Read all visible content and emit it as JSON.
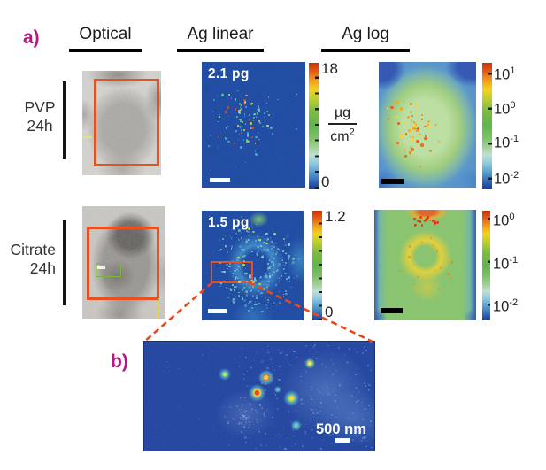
{
  "panel_a": "a)",
  "panel_b": "b)",
  "headers": {
    "optical": "Optical",
    "ag_linear": "Ag linear",
    "ag_log": "Ag log"
  },
  "row_pvp": {
    "line1": "PVP",
    "line2": "24h"
  },
  "row_citrate": {
    "line1": "Citrate",
    "line2": "24h"
  },
  "pvp": {
    "mass": "2.1 pg",
    "linear_colorbar": {
      "max": "18",
      "min": "0"
    },
    "unit": {
      "numerator": "µg",
      "denominator_base": "cm",
      "denominator_exp": "2"
    },
    "log_colorbar": {
      "t1": {
        "base": "10",
        "exp": "1"
      },
      "t2": {
        "base": "10",
        "exp": "0"
      },
      "t3": {
        "base": "10",
        "exp": "-1"
      },
      "t4": {
        "base": "10",
        "exp": "-2"
      }
    }
  },
  "citrate": {
    "mass": "1.5 pg",
    "linear_colorbar": {
      "max": "1.2",
      "min": "0"
    },
    "log_colorbar": {
      "t1": {
        "base": "10",
        "exp": "0"
      },
      "t2": {
        "base": "10",
        "exp": "-1"
      },
      "t3": {
        "base": "10",
        "exp": "-2"
      }
    }
  },
  "inset": {
    "scalebar_label": "500 nm"
  },
  "colors": {
    "accent_orange": "#e8491c",
    "label_magenta": "#b2187e",
    "linear_background_blue": "#16449f",
    "colorbar_top": "#c83008",
    "colorbar_bottom": "#1b3f95"
  }
}
